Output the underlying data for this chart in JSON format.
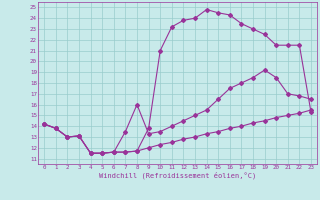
{
  "bg_color": "#c8eaea",
  "line_color": "#993399",
  "grid_color": "#99cccc",
  "xlabel": "Windchill (Refroidissement éolien,°C)",
  "xlim": [
    -0.5,
    23.5
  ],
  "ylim": [
    10.5,
    25.5
  ],
  "xticks": [
    0,
    1,
    2,
    3,
    4,
    5,
    6,
    7,
    8,
    9,
    10,
    11,
    12,
    13,
    14,
    15,
    16,
    17,
    18,
    19,
    20,
    21,
    22,
    23
  ],
  "yticks": [
    11,
    12,
    13,
    14,
    15,
    16,
    17,
    18,
    19,
    20,
    21,
    22,
    23,
    24,
    25
  ],
  "curve_bottom_x": [
    0,
    1,
    2,
    3,
    4,
    5,
    6,
    7,
    8,
    9,
    10,
    11,
    12,
    13,
    14,
    15,
    16,
    17,
    18,
    19,
    20,
    21,
    22,
    23
  ],
  "curve_bottom_y": [
    14.2,
    13.8,
    13.0,
    13.1,
    11.5,
    11.5,
    11.6,
    11.6,
    11.7,
    12.0,
    12.3,
    12.5,
    12.8,
    13.0,
    13.3,
    13.5,
    13.8,
    14.0,
    14.3,
    14.5,
    14.8,
    15.0,
    15.2,
    15.5
  ],
  "curve_mid_x": [
    0,
    1,
    2,
    3,
    4,
    5,
    6,
    7,
    8,
    9,
    10,
    11,
    12,
    13,
    14,
    15,
    16,
    17,
    18,
    19,
    20,
    21,
    22,
    23
  ],
  "curve_mid_y": [
    14.2,
    13.8,
    13.0,
    13.1,
    11.5,
    11.5,
    11.6,
    13.5,
    16.0,
    13.3,
    13.5,
    14.0,
    14.5,
    15.0,
    15.5,
    16.5,
    17.5,
    18.0,
    18.5,
    19.2,
    18.5,
    17.0,
    16.8,
    16.5
  ],
  "curve_top_x": [
    0,
    1,
    2,
    3,
    4,
    5,
    6,
    7,
    8,
    9,
    10,
    11,
    12,
    13,
    14,
    15,
    16,
    17,
    18,
    19,
    20,
    21,
    22,
    23
  ],
  "curve_top_y": [
    14.2,
    13.8,
    13.0,
    13.1,
    11.5,
    11.5,
    11.6,
    11.6,
    11.7,
    13.8,
    21.0,
    23.2,
    23.8,
    24.0,
    24.8,
    24.5,
    24.3,
    23.5,
    23.0,
    22.5,
    21.5,
    21.5,
    21.5,
    15.3
  ]
}
